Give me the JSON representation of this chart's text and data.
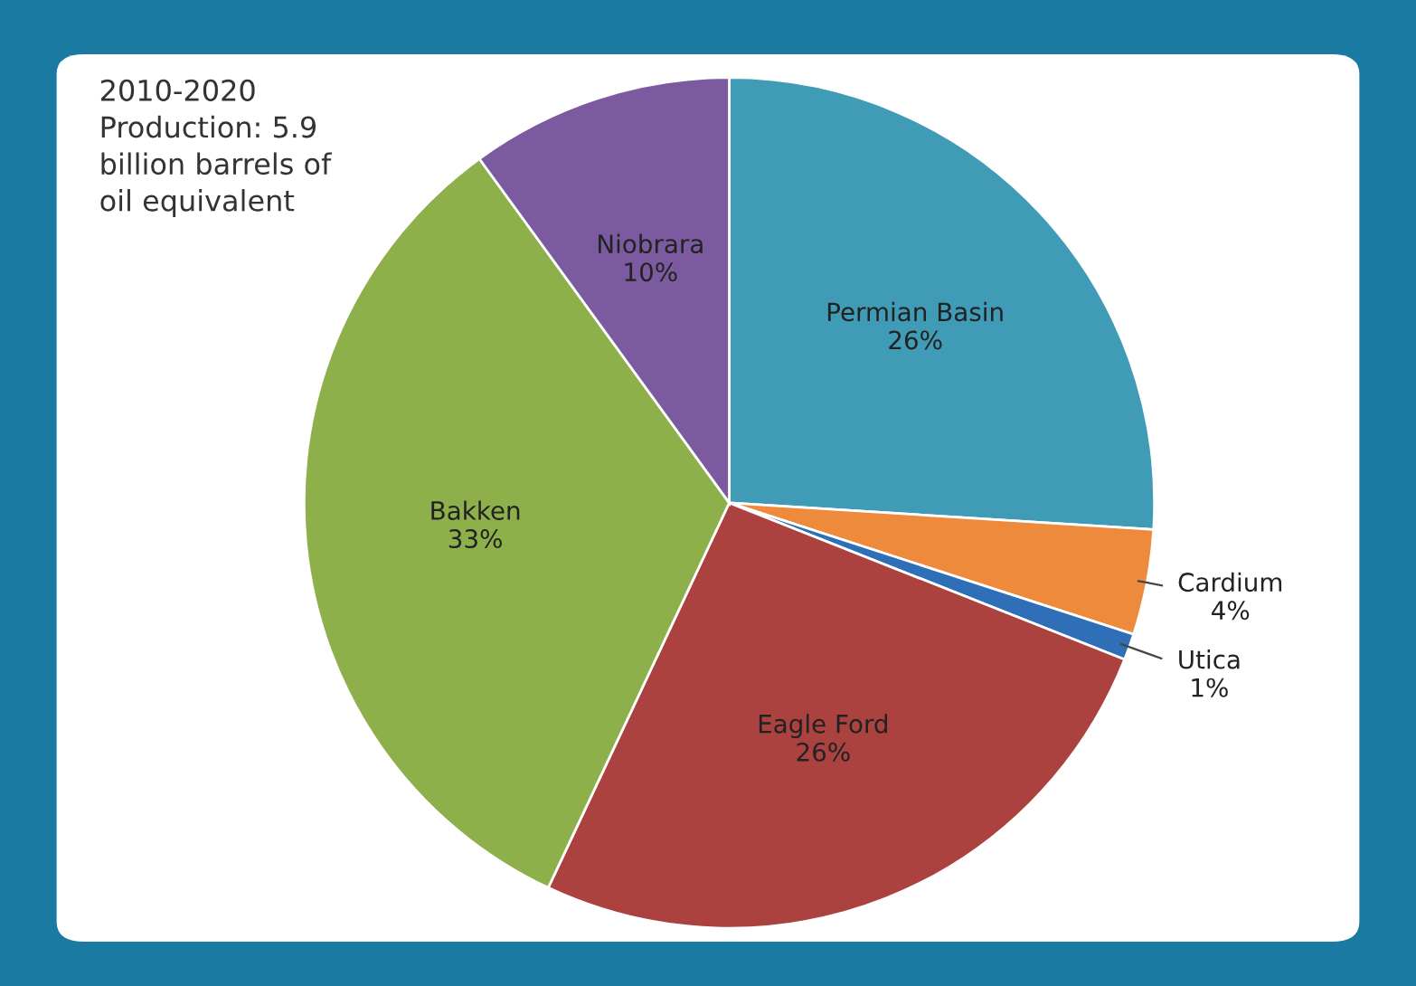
{
  "chart_data": {
    "type": "pie",
    "title": "2010-2020\nProduction: 5.9\nbillion barrels of\noil equivalent",
    "categories": [
      "Permian Basin",
      "Cardium",
      "Utica",
      "Eagle Ford",
      "Bakken",
      "Niobrara"
    ],
    "values": [
      26,
      4,
      1,
      26,
      33,
      10
    ],
    "value_labels": [
      "26%",
      "4%",
      "1%",
      "26%",
      "33%",
      "10%"
    ],
    "colors": [
      "#3f9bb6",
      "#ee8a3c",
      "#2f6fb8",
      "#ab423f",
      "#8db04b",
      "#7c5a9f"
    ],
    "legend": false
  }
}
